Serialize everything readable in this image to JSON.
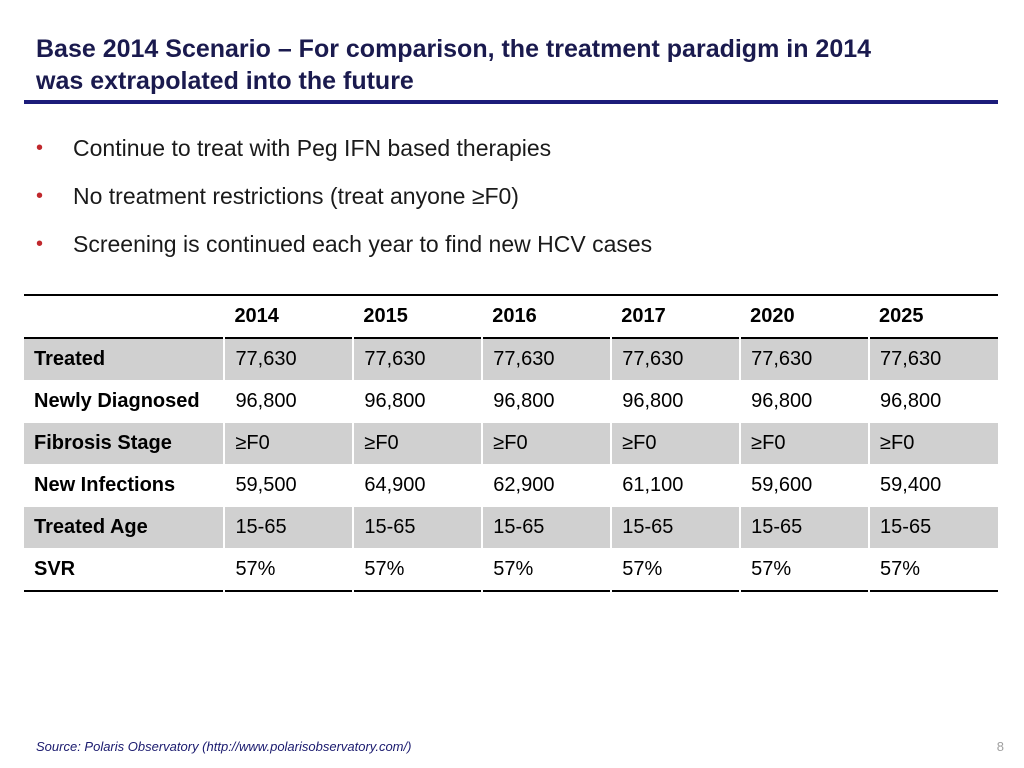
{
  "slide": {
    "title_line1": "Base 2014 Scenario – For comparison, the treatment paradigm in 2014",
    "title_line2": "was extrapolated into the future",
    "bullet_marker": "•",
    "bullets": [
      "Continue to treat with Peg IFN based therapies",
      "No treatment restrictions (treat anyone ≥F0)",
      "Screening is continued each year to find new HCV cases"
    ],
    "source": "Source:  Polaris Observatory (http://www.polarisobservatory.com/)",
    "page_number": "8"
  },
  "table": {
    "corner_header": "",
    "years": [
      "2014",
      "2015",
      "2016",
      "2017",
      "2020",
      "2025"
    ],
    "rows": [
      {
        "label": "Treated",
        "values": [
          "77,630",
          "77,630",
          "77,630",
          "77,630",
          "77,630",
          "77,630"
        ]
      },
      {
        "label": "Newly Diagnosed",
        "values": [
          "96,800",
          "96,800",
          "96,800",
          "96,800",
          "96,800",
          "96,800"
        ]
      },
      {
        "label": "Fibrosis Stage",
        "values": [
          "≥F0",
          "≥F0",
          "≥F0",
          "≥F0",
          "≥F0",
          "≥F0"
        ]
      },
      {
        "label": "New Infections",
        "values": [
          "59,500",
          "64,900",
          "62,900",
          "61,100",
          "59,600",
          "59,400"
        ]
      },
      {
        "label": "Treated Age",
        "values": [
          "15-65",
          "15-65",
          "15-65",
          "15-65",
          "15-65",
          "15-65"
        ]
      },
      {
        "label": "SVR",
        "values": [
          "57%",
          "57%",
          "57%",
          "57%",
          "57%",
          "57%"
        ]
      }
    ]
  },
  "colors": {
    "title": "#1a1a4e",
    "title_rule": "#1c1c7a",
    "bullet_marker": "#c0282d",
    "row_shading": "#d0d0d0",
    "source_text": "#1a1a6e"
  }
}
